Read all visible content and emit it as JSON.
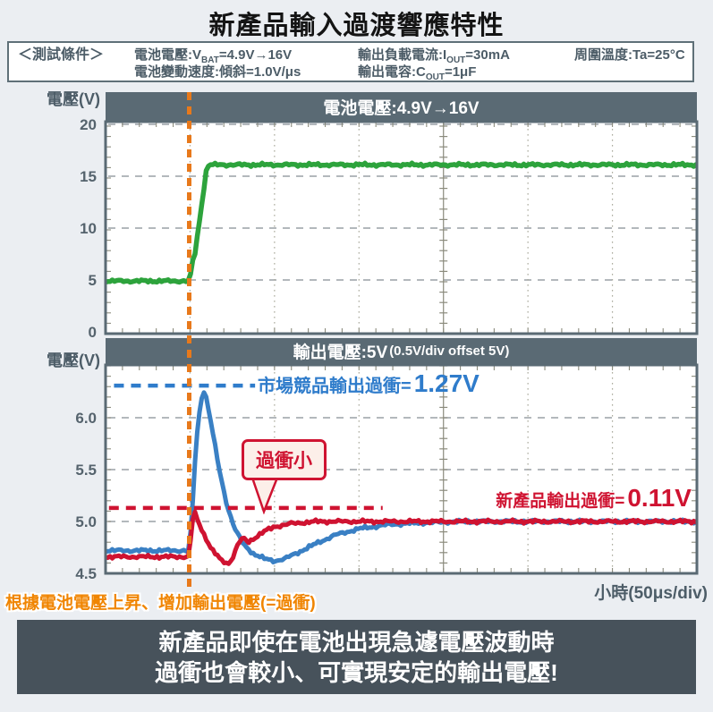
{
  "title": "新產品輸入過渡響應特性",
  "conditions": {
    "label": "＜測試條件＞",
    "items": [
      {
        "pre": "電池電壓:V",
        "sub": "BAT",
        "post": "=4.9V→16V"
      },
      {
        "pre": "電池變動速度:傾斜=1.0V/μs",
        "sub": "",
        "post": ""
      },
      {
        "pre": "輸出負載電流:I",
        "sub": "OUT",
        "post": "=30mA"
      },
      {
        "pre": "輸出電容:C",
        "sub": "OUT",
        "post": "=1μF"
      },
      {
        "pre": "周圍溫度:Ta=25°C",
        "sub": "",
        "post": ""
      }
    ]
  },
  "footer_note": "根據電池電壓上昇、增加輸出電壓(=過衝)",
  "time_axis_label": "小時(50μs/div)",
  "banner": {
    "line1": "新產品即使在電池出現急遽電壓波動時",
    "line2": "過衝也會較小、可實現安定的輸出電壓!"
  },
  "colors": {
    "accent_orange": "#e8791b",
    "orange_text": "#f08502",
    "green": "#2da33c",
    "blue": "#3a80c4",
    "blue_text": "#2f7ccb",
    "red": "#cf1331",
    "slate_band": "#5a6a74",
    "banner_bg": "#47525b",
    "grid_dash": "#9aa0a5",
    "grid_dot": "#abab9d",
    "graticule": "#8b8b7d",
    "axis_text": "#55636d"
  },
  "chart_data": [
    {
      "type": "line",
      "id": "battery",
      "title": "電池電壓:4.9V→16V",
      "ylabel": "電壓(V)",
      "ytick_values": [
        20,
        15,
        10,
        5,
        0
      ],
      "ytick_labels": [
        "20",
        "15",
        "10",
        "5",
        "0"
      ],
      "ylim": [
        -0.17,
        20.26
      ],
      "xlim": [
        0,
        7
      ],
      "x_unit": "50μs/div",
      "event_x": 1.0,
      "grid_x_divisions": [
        1,
        2,
        3,
        5,
        6
      ],
      "graticule_x": 4,
      "series": [
        {
          "name": "電池電壓",
          "color": "#2da33c",
          "width": 5.5,
          "noise": 0.13,
          "points": [
            [
              0,
              4.9
            ],
            [
              0.98,
              4.9
            ],
            [
              1.0,
              5.2
            ],
            [
              1.04,
              7.2
            ],
            [
              1.06,
              7.6
            ],
            [
              1.2,
              16.0
            ],
            [
              1.24,
              16.1
            ],
            [
              7,
              16.1
            ]
          ]
        }
      ],
      "annotations": {}
    },
    {
      "type": "line",
      "id": "output",
      "title_main": "輸出電壓:5V",
      "title_paren": "(0.5V/div offset 5V)",
      "ylabel": "電壓(V)",
      "ytick_values": [
        6.0,
        5.5,
        5.0,
        4.5
      ],
      "ytick_labels": [
        "6.0",
        "5.5",
        "5.0",
        "4.5"
      ],
      "ylim": [
        4.5,
        6.509
      ],
      "xlim": [
        0,
        7
      ],
      "x_unit": "50μs/div",
      "event_x": 1.0,
      "grid_x_divisions": [
        1,
        2,
        3,
        5,
        6
      ],
      "graticule_x": 4,
      "series": [
        {
          "name": "市場競品",
          "color": "#3a80c4",
          "width": 5,
          "noise": 0.015,
          "points": [
            [
              0,
              4.72
            ],
            [
              0.985,
              4.72
            ],
            [
              1.02,
              5.0
            ],
            [
              1.06,
              5.6
            ],
            [
              1.1,
              6.0
            ],
            [
              1.14,
              6.2
            ],
            [
              1.165,
              6.26
            ],
            [
              1.2,
              6.17
            ],
            [
              1.27,
              5.85
            ],
            [
              1.35,
              5.48
            ],
            [
              1.44,
              5.15
            ],
            [
              1.53,
              4.93
            ],
            [
              1.63,
              4.78
            ],
            [
              1.75,
              4.69
            ],
            [
              1.88,
              4.64
            ],
            [
              2.0,
              4.62
            ],
            [
              2.12,
              4.64
            ],
            [
              2.3,
              4.71
            ],
            [
              2.5,
              4.79
            ],
            [
              2.72,
              4.87
            ],
            [
              3.0,
              4.93
            ],
            [
              3.35,
              4.97
            ],
            [
              3.8,
              4.99
            ],
            [
              4.3,
              5.0
            ],
            [
              7,
              5.0
            ]
          ]
        },
        {
          "name": "新產品",
          "color": "#cf1331",
          "width": 5,
          "noise": 0.015,
          "points": [
            [
              0,
              4.66
            ],
            [
              0.99,
              4.66
            ],
            [
              1.015,
              4.9
            ],
            [
              1.045,
              5.11
            ],
            [
              1.08,
              5.03
            ],
            [
              1.15,
              4.9
            ],
            [
              1.25,
              4.74
            ],
            [
              1.36,
              4.63
            ],
            [
              1.45,
              4.59
            ],
            [
              1.51,
              4.66
            ],
            [
              1.57,
              4.79
            ],
            [
              1.63,
              4.84
            ],
            [
              1.69,
              4.8
            ],
            [
              1.76,
              4.84
            ],
            [
              1.87,
              4.9
            ],
            [
              2.0,
              4.95
            ],
            [
              2.2,
              4.98
            ],
            [
              2.5,
              5.0
            ],
            [
              7,
              5.0
            ]
          ]
        }
      ],
      "annotations": {
        "competitor_line": {
          "label": "市場競品輸出過衝=",
          "value": "1.27V",
          "y": 6.31,
          "x1": 0.1,
          "x2": 1.77,
          "color": "#2f7ccb"
        },
        "product_line": {
          "label": "新產品輸出過衝=",
          "value": "0.11V",
          "y": 5.13,
          "x1": 0.04,
          "x2": 3.28,
          "color": "#cf1331"
        },
        "callout": {
          "text": "過衝小"
        }
      }
    }
  ]
}
